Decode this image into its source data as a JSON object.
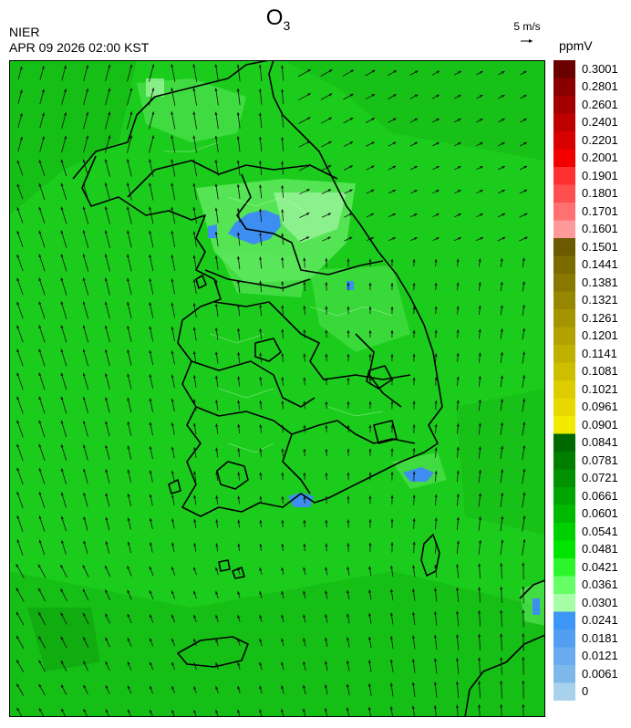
{
  "header": {
    "species": "O",
    "species_subscript": "3",
    "agency": "NIER",
    "datetime": "APR 09 2026 02:00 KST",
    "wind_reference": "5 m/s",
    "unit": "ppmV"
  },
  "colorbar": {
    "levels": [
      {
        "label": "0.3001",
        "color": "#6b0000"
      },
      {
        "label": "0.2801",
        "color": "#8a0000"
      },
      {
        "label": "0.2601",
        "color": "#a50000"
      },
      {
        "label": "0.2401",
        "color": "#bf0000"
      },
      {
        "label": "0.2201",
        "color": "#d90000"
      },
      {
        "label": "0.2001",
        "color": "#f20000"
      },
      {
        "label": "0.1901",
        "color": "#ff3030"
      },
      {
        "label": "0.1801",
        "color": "#ff5050"
      },
      {
        "label": "0.1701",
        "color": "#ff7070"
      },
      {
        "label": "0.1601",
        "color": "#ff9a9a"
      },
      {
        "label": "0.1501",
        "color": "#6b5a00"
      },
      {
        "label": "0.1441",
        "color": "#7a6a00"
      },
      {
        "label": "0.1381",
        "color": "#887800"
      },
      {
        "label": "0.1321",
        "color": "#968600"
      },
      {
        "label": "0.1261",
        "color": "#a49400"
      },
      {
        "label": "0.1201",
        "color": "#b2a200"
      },
      {
        "label": "0.1141",
        "color": "#c0b000"
      },
      {
        "label": "0.1081",
        "color": "#cebe00"
      },
      {
        "label": "0.1021",
        "color": "#dccc00"
      },
      {
        "label": "0.0961",
        "color": "#e8da00"
      },
      {
        "label": "0.0901",
        "color": "#f2ea00"
      },
      {
        "label": "0.0841",
        "color": "#006a00"
      },
      {
        "label": "0.0781",
        "color": "#007e00"
      },
      {
        "label": "0.0721",
        "color": "#009200"
      },
      {
        "label": "0.0661",
        "color": "#00a600"
      },
      {
        "label": "0.0601",
        "color": "#00ba00"
      },
      {
        "label": "0.0541",
        "color": "#00cf00"
      },
      {
        "label": "0.0481",
        "color": "#00e400"
      },
      {
        "label": "0.0421",
        "color": "#2cf52c"
      },
      {
        "label": "0.0361",
        "color": "#66ff66"
      },
      {
        "label": "0.0301",
        "color": "#a6ffa6"
      },
      {
        "label": "0.0241",
        "color": "#3d95f5"
      },
      {
        "label": "0.0181",
        "color": "#529ff2"
      },
      {
        "label": "0.0121",
        "color": "#68abef"
      },
      {
        "label": "0.0061",
        "color": "#7eb8eb"
      },
      {
        "label": "0",
        "color": "#a8d2ec"
      }
    ]
  },
  "map": {
    "field_color_main": "#1ccc1c",
    "field_color_dark": "#12b512",
    "field_color_light": "#5ee85e",
    "field_color_pale": "#9af29a",
    "field_color_low": "#3d8ef0"
  }
}
